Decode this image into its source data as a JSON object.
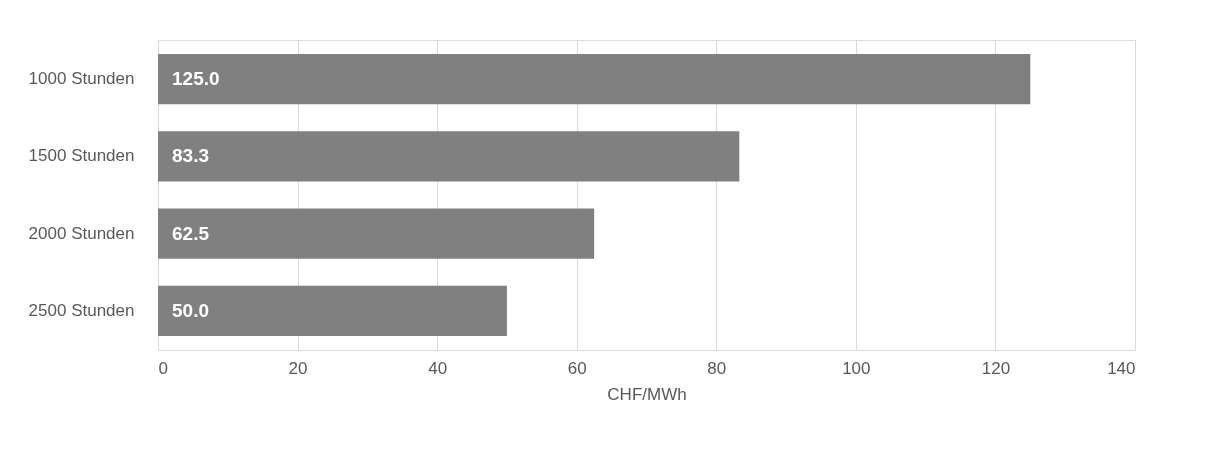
{
  "chart_data": {
    "type": "bar",
    "orientation": "horizontal",
    "xlabel": "CHF/MWh",
    "categories": [
      "1000 Stunden",
      "1500 Stunden",
      "2000 Stunden",
      "2500 Stunden"
    ],
    "values": [
      125.0,
      83.3,
      62.5,
      50.0
    ],
    "value_labels": [
      "125.0",
      "83.3",
      "62.5",
      "50.0"
    ],
    "color": "#808080",
    "xlim": [
      0,
      140
    ],
    "xticks": [
      0,
      20,
      40,
      60,
      80,
      100,
      120,
      140
    ],
    "grid": "x"
  }
}
